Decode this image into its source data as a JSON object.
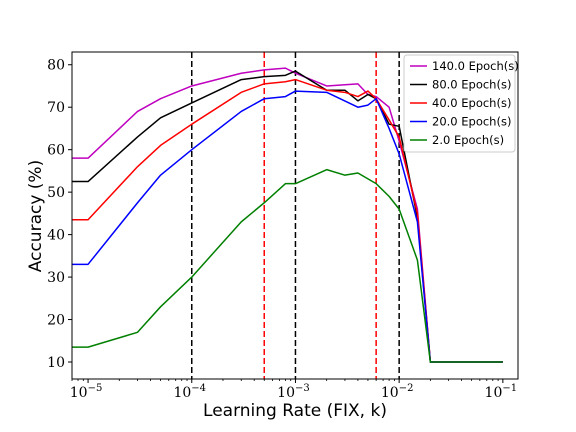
{
  "chart_data": {
    "type": "line",
    "title": "",
    "xlabel": "Learning Rate (FIX, k)",
    "ylabel": "Accuracy (%)",
    "xscale": "log",
    "xlim": [
      7e-06,
      0.14
    ],
    "ylim": [
      6,
      83
    ],
    "yticks": [
      10,
      20,
      30,
      40,
      50,
      60,
      70,
      80
    ],
    "xticks": [
      {
        "value": 1e-05,
        "base": "10",
        "exp": "−5"
      },
      {
        "value": 0.0001,
        "base": "10",
        "exp": "−4"
      },
      {
        "value": 0.001,
        "base": "10",
        "exp": "−3"
      },
      {
        "value": 0.01,
        "base": "10",
        "exp": "−2"
      },
      {
        "value": 0.1,
        "base": "10",
        "exp": "−1"
      }
    ],
    "grid": false,
    "legend_position": "top-right",
    "vlines": [
      {
        "x": 0.0001,
        "color": "#000000"
      },
      {
        "x": 0.001,
        "color": "#000000"
      },
      {
        "x": 0.01,
        "color": "#000000"
      },
      {
        "x": 0.0005,
        "color": "#ff0000"
      },
      {
        "x": 0.006,
        "color": "#ff0000"
      }
    ],
    "series": [
      {
        "name": "140.0 Epoch(s)",
        "color": "#bf00bf",
        "x": [
          6e-06,
          1e-05,
          3e-05,
          5e-05,
          0.0001,
          0.0003,
          0.0005,
          0.0008,
          0.001,
          0.002,
          0.004,
          0.005,
          0.006,
          0.008,
          0.01,
          0.015,
          0.02,
          0.05,
          0.1
        ],
        "y": [
          58,
          58,
          69,
          72,
          75,
          78,
          78.8,
          79.2,
          78,
          75,
          75.5,
          73,
          72.5,
          70,
          62,
          46,
          10,
          10,
          10
        ]
      },
      {
        "name": "80.0 Epoch(s)",
        "color": "#000000",
        "x": [
          6e-06,
          1e-05,
          3e-05,
          5e-05,
          0.0001,
          0.0003,
          0.0005,
          0.0008,
          0.001,
          0.002,
          0.003,
          0.004,
          0.005,
          0.006,
          0.008,
          0.01,
          0.015,
          0.02,
          0.05,
          0.1
        ],
        "y": [
          52.5,
          52.5,
          63,
          67.5,
          71,
          76.5,
          77.2,
          77.5,
          78.5,
          74,
          74,
          71.5,
          73,
          72,
          66,
          65.5,
          44,
          10,
          10,
          10
        ]
      },
      {
        "name": "40.0 Epoch(s)",
        "color": "#ff0000",
        "x": [
          6e-06,
          1e-05,
          3e-05,
          5e-05,
          0.0001,
          0.0003,
          0.0005,
          0.0008,
          0.001,
          0.002,
          0.003,
          0.004,
          0.005,
          0.006,
          0.008,
          0.01,
          0.015,
          0.02,
          0.05,
          0.1
        ],
        "y": [
          43.5,
          43.5,
          56,
          61,
          66,
          73.5,
          75.5,
          76,
          76.5,
          74,
          73.5,
          72.5,
          73.8,
          72,
          67,
          63,
          45,
          10,
          10,
          10
        ]
      },
      {
        "name": "20.0 Epoch(s)",
        "color": "#0000ff",
        "x": [
          6e-06,
          1e-05,
          3e-05,
          5e-05,
          0.0001,
          0.0003,
          0.0005,
          0.0008,
          0.001,
          0.002,
          0.004,
          0.005,
          0.006,
          0.008,
          0.01,
          0.015,
          0.02,
          0.05,
          0.1
        ],
        "y": [
          33,
          33,
          47.5,
          54,
          60,
          69,
          72,
          72.5,
          73.8,
          73.5,
          70,
          70.5,
          72,
          65,
          59,
          43,
          10,
          10,
          10
        ]
      },
      {
        "name": "2.0 Epoch(s)",
        "color": "#008000",
        "x": [
          6e-06,
          1e-05,
          3e-05,
          5e-05,
          0.0001,
          0.0003,
          0.0005,
          0.0008,
          0.001,
          0.002,
          0.003,
          0.004,
          0.006,
          0.008,
          0.01,
          0.015,
          0.02,
          0.05,
          0.1
        ],
        "y": [
          13.5,
          13.5,
          17,
          23,
          30,
          43,
          47.5,
          52,
          52,
          55.3,
          54,
          54.5,
          52,
          49,
          46,
          34,
          10,
          10,
          10
        ]
      }
    ]
  }
}
